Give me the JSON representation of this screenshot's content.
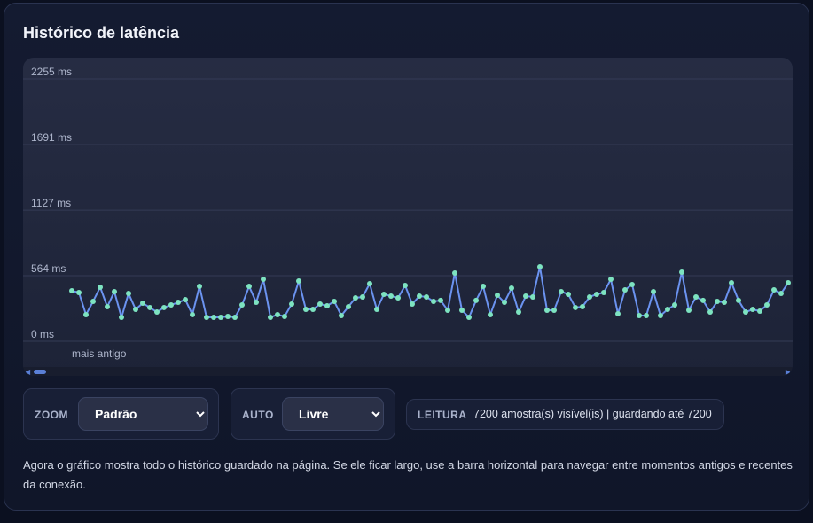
{
  "title": "Histórico de latência",
  "chart_data": {
    "type": "line",
    "color": "#6b93f0",
    "marker_color": "#7de3c0",
    "grid": true,
    "annotation": "mais antigo",
    "ylim": [
      0,
      2400
    ],
    "yticks": [
      {
        "value": 0,
        "label": "0 ms"
      },
      {
        "value": 564,
        "label": "564 ms"
      },
      {
        "value": 1127,
        "label": "1127 ms"
      },
      {
        "value": 1691,
        "label": "1691 ms"
      },
      {
        "value": 2255,
        "label": "2255 ms"
      }
    ],
    "values": [
      434,
      419,
      229,
      343,
      465,
      297,
      427,
      206,
      411,
      274,
      328,
      290,
      251,
      290,
      312,
      335,
      358,
      229,
      472,
      206,
      206,
      206,
      213,
      206,
      312,
      472,
      335,
      533,
      206,
      229,
      213,
      320,
      518,
      274,
      274,
      320,
      305,
      343,
      221,
      297,
      373,
      381,
      495,
      274,
      404,
      389,
      373,
      480,
      320,
      389,
      381,
      343,
      351,
      267,
      587,
      267,
      206,
      351,
      472,
      229,
      396,
      335,
      457,
      251,
      389,
      381,
      640,
      267,
      267,
      427,
      404,
      290,
      297,
      381,
      404,
      419,
      533,
      236,
      442,
      488,
      221,
      221,
      427,
      221,
      274,
      312,
      594,
      267,
      381,
      351,
      251,
      343,
      335,
      503,
      351,
      251,
      274,
      259,
      312,
      442,
      411,
      503
    ]
  },
  "controls": {
    "zoom": {
      "label": "ZOOM",
      "value": "Padrão"
    },
    "auto": {
      "label": "AUTO",
      "value": "Livre"
    }
  },
  "reading": {
    "label": "LEITURA",
    "text": "7200 amostra(s) visível(is) | guardando até 7200"
  },
  "description": "Agora o gráfico mostra todo o histórico guardado na página. Se ele ficar largo, use a barra horizontal para navegar entre momentos antigos e recentes da conexão."
}
